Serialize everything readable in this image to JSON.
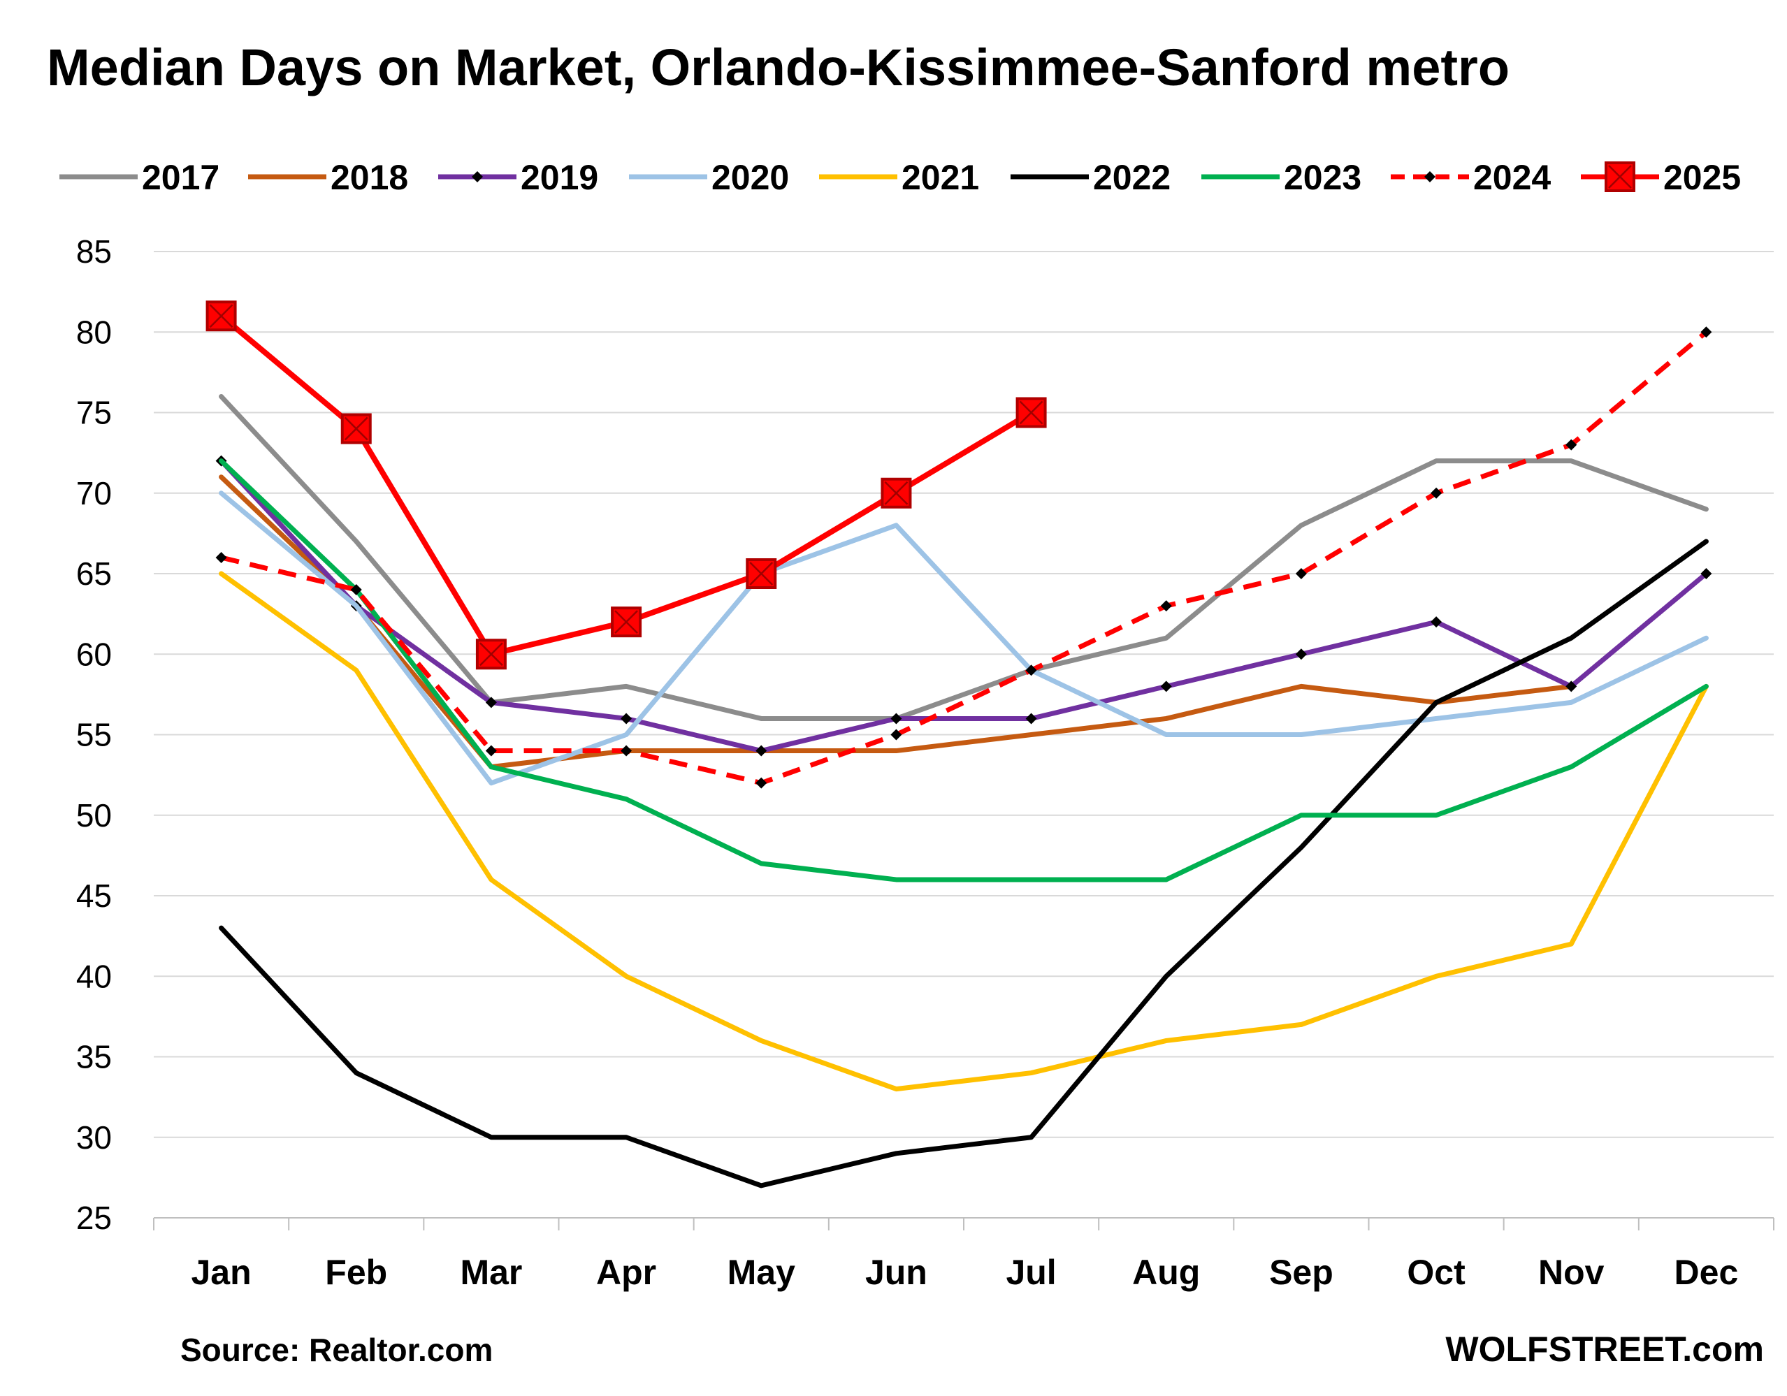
{
  "chart_data": {
    "type": "line",
    "title": "Median Days on Market, Orlando-Kissimmee-Sanford metro",
    "xlabel": "",
    "ylabel": "",
    "ylim": [
      25,
      85
    ],
    "yticks": [
      "85",
      "80",
      "75",
      "70",
      "65",
      "60",
      "55",
      "50",
      "45",
      "40",
      "35",
      "30",
      "25"
    ],
    "categories": [
      "Jan",
      "Feb",
      "Mar",
      "Apr",
      "May",
      "Jun",
      "Jul",
      "Aug",
      "Sep",
      "Oct",
      "Nov",
      "Dec"
    ],
    "grid": true,
    "legend_position": "top",
    "series": [
      {
        "name": "2017",
        "color": "#8c8c8c",
        "dash": false,
        "marker": "none",
        "values": [
          76,
          67,
          57,
          58,
          56,
          56,
          59,
          61,
          68,
          72,
          72,
          69
        ]
      },
      {
        "name": "2018",
        "color": "#c55a11",
        "dash": false,
        "marker": "none",
        "values": [
          71,
          63,
          53,
          54,
          54,
          54,
          55,
          56,
          58,
          57,
          58,
          null
        ]
      },
      {
        "name": "2019",
        "color": "#7030a0",
        "dash": false,
        "marker": "diamond",
        "values": [
          72,
          63,
          57,
          56,
          54,
          56,
          56,
          58,
          60,
          62,
          58,
          65
        ]
      },
      {
        "name": "2020",
        "color": "#9dc3e6",
        "dash": false,
        "marker": "none",
        "values": [
          70,
          63,
          52,
          55,
          65,
          68,
          59,
          55,
          55,
          56,
          57,
          61
        ]
      },
      {
        "name": "2021",
        "color": "#ffc000",
        "dash": false,
        "marker": "none",
        "values": [
          65,
          59,
          46,
          40,
          36,
          33,
          34,
          36,
          37,
          40,
          42,
          58
        ]
      },
      {
        "name": "2022",
        "color": "#000000",
        "dash": false,
        "marker": "none",
        "values": [
          43,
          34,
          30,
          30,
          27,
          29,
          30,
          40,
          48,
          57,
          61,
          67
        ]
      },
      {
        "name": "2023",
        "color": "#00b050",
        "dash": false,
        "marker": "none",
        "values": [
          72,
          64,
          53,
          51,
          47,
          46,
          46,
          46,
          50,
          50,
          53,
          58
        ]
      },
      {
        "name": "2024",
        "color": "#ff0000",
        "dash": true,
        "marker": "diamond",
        "values": [
          66,
          64,
          54,
          54,
          52,
          55,
          59,
          63,
          65,
          70,
          73,
          80
        ]
      },
      {
        "name": "2025",
        "color": "#ff0000",
        "dash": false,
        "marker": "square",
        "values": [
          81,
          74,
          60,
          62,
          65,
          70,
          75,
          null,
          null,
          null,
          null,
          null
        ]
      }
    ]
  },
  "footer": {
    "source": "Source: Realtor.com",
    "brand": "WOLFSTREET.com"
  }
}
